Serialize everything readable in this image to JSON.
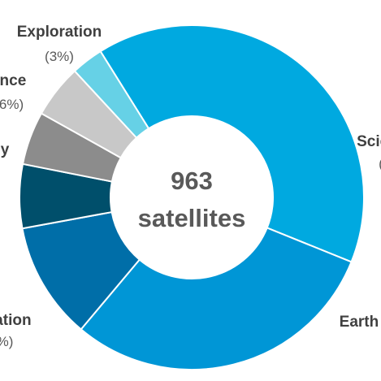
{
  "chart_data": {
    "type": "pie",
    "donut": true,
    "center_label": [
      "963",
      "satellites"
    ],
    "slices": [
      {
        "label": "Science",
        "percent_text": "(",
        "value": 40,
        "color": "#00a9e0"
      },
      {
        "label": "Earth Observation",
        "percent_text": "",
        "value": 30,
        "color": "#0096d6"
      },
      {
        "label": "Navigation",
        "percent_text": "%)",
        "value": 11,
        "color": "#006ea8"
      },
      {
        "label": "",
        "percent_text": "",
        "value": 6,
        "color": "#004f6b"
      },
      {
        "label": "",
        "percent_text": "",
        "value": 5,
        "color": "#8c8c8c"
      },
      {
        "label": "Intelligence",
        "percent_text": "6%)",
        "value": 5,
        "color": "#c8c8c8"
      },
      {
        "label": "Exploration",
        "percent_text": "(3%)",
        "value": 3,
        "color": "#66d1e6"
      }
    ],
    "side_fragments": [
      {
        "label": "y",
        "percent_text": ""
      }
    ]
  }
}
